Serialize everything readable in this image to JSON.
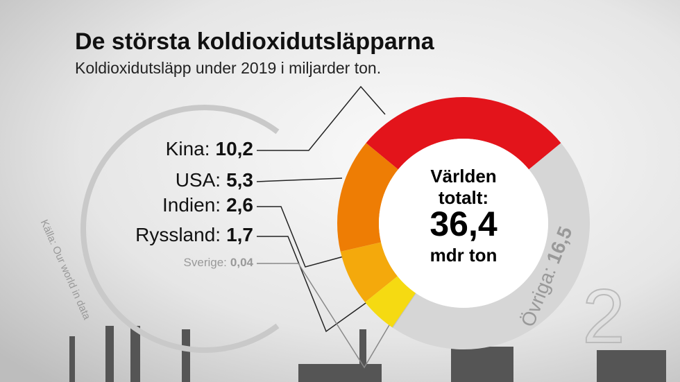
{
  "chart_data": {
    "type": "donut",
    "title": "De största koldioxidutsläpparna",
    "subtitle": "Koldioxidutsläpp under 2019 i miljarder ton.",
    "categories": [
      "Kina",
      "USA",
      "Indien",
      "Ryssland",
      "Sverige",
      "Övriga"
    ],
    "label_separator": ":",
    "values": [
      10.2,
      5.3,
      2.6,
      1.7,
      0.04,
      16.5
    ],
    "value_labels": [
      "10,2",
      "5,3",
      "2,6",
      "1,7",
      "0,04",
      "16,5"
    ],
    "colors": [
      "#e3141b",
      "#ee7d04",
      "#f4a90c",
      "#f5da12",
      "#bdbdbd",
      "#d6d6d6"
    ],
    "center_label": [
      "Världen",
      "totalt:"
    ],
    "total": {
      "value": 36.4,
      "label": "36,4"
    },
    "unit": "mdr ton",
    "source": "Källa: Our world in data",
    "logo_subscript": "2"
  }
}
